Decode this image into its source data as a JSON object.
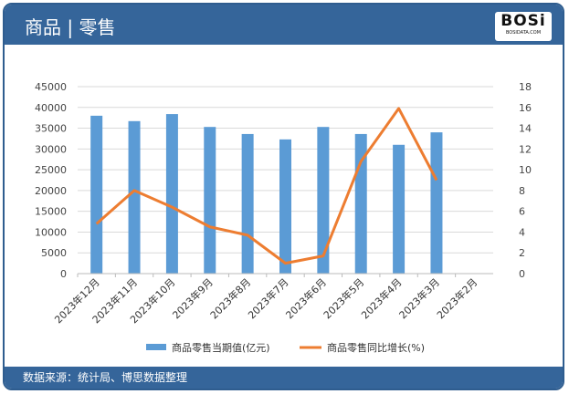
{
  "header": {
    "title": "商品 | 零售",
    "logo": "BOSI BOSIDATA.COM"
  },
  "footer": {
    "source": "数据来源：统计局、博思数据整理"
  },
  "chart_data": {
    "type": "bar+line",
    "categories": [
      "2023年12月",
      "2023年11月",
      "2023年10月",
      "2023年9月",
      "2023年8月",
      "2023年7月",
      "2023年6月",
      "2023年5月",
      "2023年4月",
      "2023年3月",
      "2023年2月"
    ],
    "series": [
      {
        "name": "商品零售当期值(亿元)",
        "type": "bar",
        "axis": "left",
        "color": "#5b9bd5",
        "values": [
          38000,
          36700,
          38400,
          35300,
          33600,
          32300,
          35300,
          33600,
          31000,
          34000,
          null
        ]
      },
      {
        "name": "商品零售同比增长(%)",
        "type": "line",
        "axis": "right",
        "color": "#ed7d31",
        "values": [
          4.8,
          8.0,
          6.4,
          4.5,
          3.7,
          1.0,
          1.7,
          10.8,
          15.9,
          9.0,
          null
        ]
      }
    ],
    "y_left": {
      "range": [
        0,
        45000
      ],
      "ticks": [
        0,
        5000,
        10000,
        15000,
        20000,
        25000,
        30000,
        35000,
        40000,
        45000
      ]
    },
    "y_right": {
      "range": [
        0,
        18
      ],
      "ticks": [
        0,
        2,
        4,
        6,
        8,
        10,
        12,
        14,
        16,
        18
      ]
    },
    "grid": true,
    "legend": "bottom"
  }
}
